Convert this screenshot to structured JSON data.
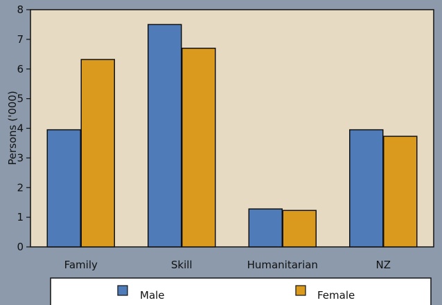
{
  "chart_data": {
    "type": "bar",
    "title": "",
    "xlabel": "",
    "ylabel": "Persons ('000)",
    "ylim": [
      0,
      8
    ],
    "yticks": [
      0,
      1,
      2,
      3,
      4,
      5,
      6,
      7,
      8
    ],
    "categories": [
      "Family",
      "Skill",
      "Humanitarian",
      "NZ"
    ],
    "series": [
      {
        "name": "Male",
        "values": [
          3.95,
          7.5,
          1.28,
          3.95
        ],
        "color": "#4f7cb9"
      },
      {
        "name": "Female",
        "values": [
          6.32,
          6.7,
          1.23,
          3.73
        ],
        "color": "#d99a1e"
      }
    ],
    "grid": false,
    "legend_position": "bottom",
    "plot_background": "#e6dac2",
    "page_background": "#8c9aab"
  }
}
